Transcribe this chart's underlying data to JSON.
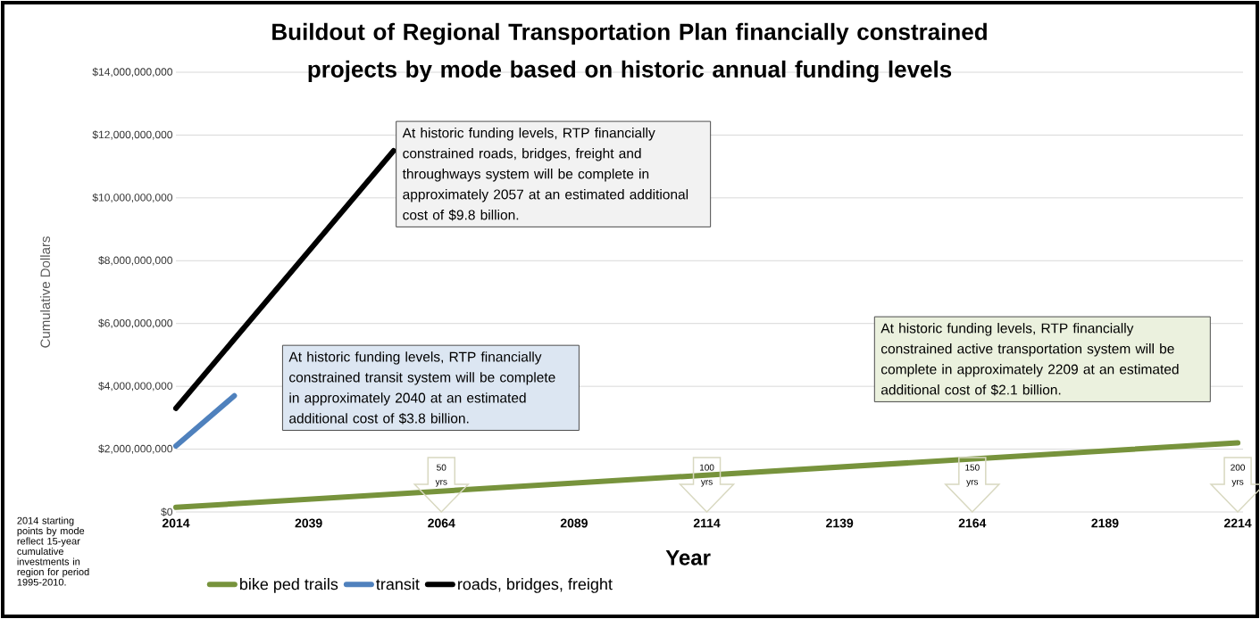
{
  "chart_data": {
    "type": "line",
    "title": "Buildout of Regional Transportation Plan financially constrained projects by mode based on historic annual funding levels",
    "xlabel": "Year",
    "ylabel": "Cumulative Dollars",
    "series": [
      {
        "name": "bike ped trails",
        "color": "#77933c",
        "x": [
          2014,
          2214
        ],
        "values": [
          150000000,
          2200000000
        ]
      },
      {
        "name": "transit",
        "color": "#4f81bd",
        "x": [
          2014,
          2025
        ],
        "values": [
          2100000000,
          3700000000
        ]
      },
      {
        "name": "roads, bridges, freight",
        "color": "#000000",
        "x": [
          2014,
          2055
        ],
        "values": [
          3300000000,
          11500000000
        ]
      }
    ],
    "xlim": [
      2014,
      2215
    ],
    "xticks": [
      2014,
      2039,
      2064,
      2089,
      2114,
      2139,
      2164,
      2189,
      2214
    ],
    "ylim": [
      0,
      14000000000
    ],
    "yticks": [
      {
        "value": 0,
        "label": "$0"
      },
      {
        "value": 2000000000,
        "label": "$2,000,000,000"
      },
      {
        "value": 4000000000,
        "label": "$4,000,000,000"
      },
      {
        "value": 6000000000,
        "label": "$6,000,000,000"
      },
      {
        "value": 8000000000,
        "label": "$8,000,000,000"
      },
      {
        "value": 10000000000,
        "label": "$10,000,000,000"
      },
      {
        "value": 12000000000,
        "label": "$12,000,000,000"
      },
      {
        "value": 14000000000,
        "label": "$14,000,000,000"
      }
    ],
    "annotations": [
      "At historic funding levels, RTP financially constrained roads, bridges, freight and throughways system will be complete in approximately  2057 at an estimated additional cost of $9.8 billion.",
      "At historic funding levels, RTP financially constrained transit system will be complete in approximately 2040 at an estimated additional cost of $3.8 billion.",
      "At historic funding levels, RTP financially constrained active transportation system will be complete in approximately 2209 at an estimated additional cost of $2.1 billion.",
      "2014 starting points by mode reflect 15-year cumulative investments in region for period 1995-2010.",
      "50 yrs",
      "100 yrs",
      "150 yrs",
      "200 yrs"
    ],
    "grid": "y",
    "legend": "bottom",
    "marker": "none",
    "line_style": "solid"
  }
}
